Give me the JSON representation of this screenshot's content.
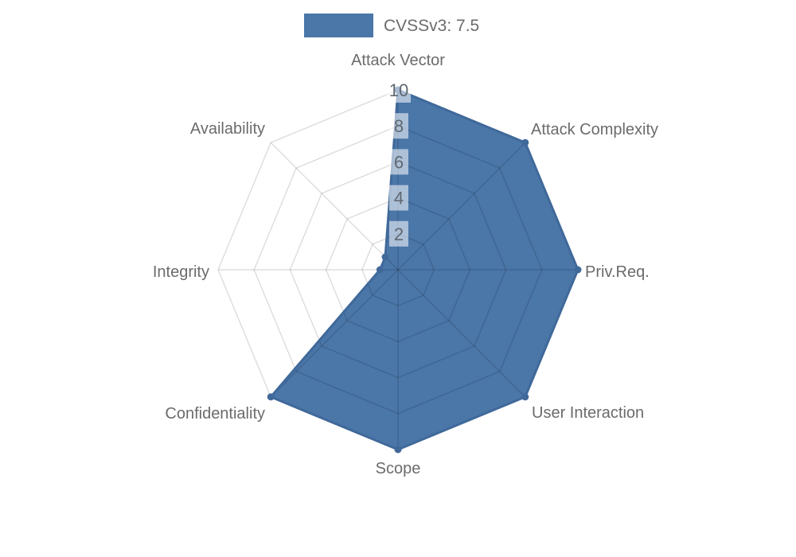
{
  "legend": {
    "label": "CVSSv3: 7.5"
  },
  "chart_data": {
    "type": "radar",
    "title": "",
    "legend_position": "top",
    "grid": true,
    "axes": [
      "Attack Vector",
      "Attack Complexity",
      "Priv.Req.",
      "User Interaction",
      "Scope",
      "Confidentiality",
      "Integrity",
      "Availability"
    ],
    "series": [
      {
        "name": "CVSSv3: 7.5",
        "values": [
          10,
          10,
          10,
          10,
          10,
          10,
          1,
          1
        ]
      }
    ],
    "scale": {
      "min": 0,
      "max": 10,
      "tick_values": [
        2,
        4,
        6,
        8,
        10
      ],
      "tick_labels": [
        "2",
        "4",
        "6",
        "8",
        "10"
      ]
    },
    "colors": {
      "series_fill": "#4a76a8",
      "series_border": "#40699a",
      "grid_line": "rgba(0,0,0,0.13)",
      "label_text": "#6b6b6b",
      "tick_text": "#5f6872",
      "tick_box": "rgba(255,255,255,0.55)",
      "background": "#ffffff"
    }
  }
}
